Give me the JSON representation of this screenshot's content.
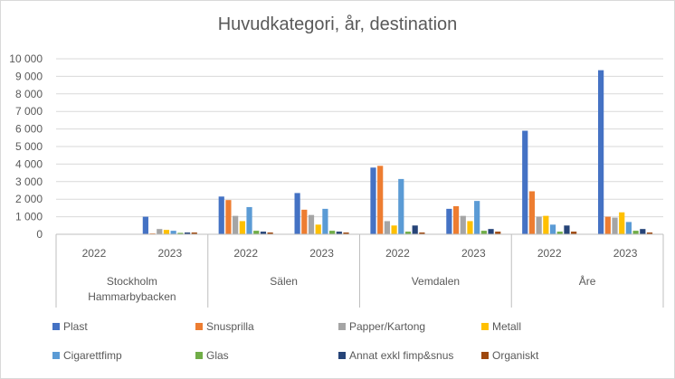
{
  "chart_data": {
    "type": "bar",
    "title": "Huvudkategori, år, destination",
    "xlabel": "",
    "ylabel": "",
    "ylim": [
      0,
      10000
    ],
    "yticks": [
      "0",
      "1 000",
      "2 000",
      "3 000",
      "4 000",
      "5 000",
      "6 000",
      "7 000",
      "8 000",
      "9 000",
      "10 000"
    ],
    "grid": true,
    "legend_position": "bottom",
    "groups": [
      {
        "name": "Stockholm Hammarbybacken",
        "lines": [
          "Stockholm",
          "Hammarbybacken"
        ],
        "years": [
          "2022",
          "2023"
        ]
      },
      {
        "name": "Sälen",
        "lines": [
          "Sälen"
        ],
        "years": [
          "2022",
          "2023"
        ]
      },
      {
        "name": "Vemdalen",
        "lines": [
          "Vemdalen"
        ],
        "years": [
          "2022",
          "2023"
        ]
      },
      {
        "name": "Åre",
        "lines": [
          "Åre"
        ],
        "years": [
          "2022",
          "2023"
        ]
      }
    ],
    "categories": [
      "Stockholm Hammarbybacken 2022",
      "Stockholm Hammarbybacken 2023",
      "Sälen 2022",
      "Sälen 2023",
      "Vemdalen 2022",
      "Vemdalen 2023",
      "Åre 2022",
      "Åre 2023"
    ],
    "series": [
      {
        "name": "Plast",
        "color": "#4472c4",
        "values": [
          0,
          1000,
          2150,
          2350,
          3800,
          1450,
          5900,
          9350
        ]
      },
      {
        "name": "Snusprilla",
        "color": "#ed7d31",
        "values": [
          0,
          50,
          1950,
          1400,
          3900,
          1600,
          2450,
          1000
        ]
      },
      {
        "name": "Papper/Kartong",
        "color": "#a5a5a5",
        "values": [
          0,
          300,
          1050,
          1100,
          750,
          1050,
          1000,
          950
        ]
      },
      {
        "name": "Metall",
        "color": "#ffc000",
        "values": [
          0,
          250,
          750,
          550,
          500,
          750,
          1050,
          1250
        ]
      },
      {
        "name": "Cigarettfimp",
        "color": "#5b9bd5",
        "values": [
          0,
          200,
          1550,
          1450,
          3150,
          1900,
          550,
          700
        ]
      },
      {
        "name": "Glas",
        "color": "#70ad47",
        "values": [
          0,
          80,
          200,
          200,
          150,
          200,
          150,
          200
        ]
      },
      {
        "name": "Annat exkl fimp&snus",
        "color": "#264478",
        "values": [
          0,
          100,
          150,
          150,
          500,
          300,
          500,
          300
        ]
      },
      {
        "name": "Organiskt",
        "color": "#9e480e",
        "values": [
          0,
          100,
          100,
          100,
          100,
          150,
          150,
          100
        ]
      }
    ]
  }
}
